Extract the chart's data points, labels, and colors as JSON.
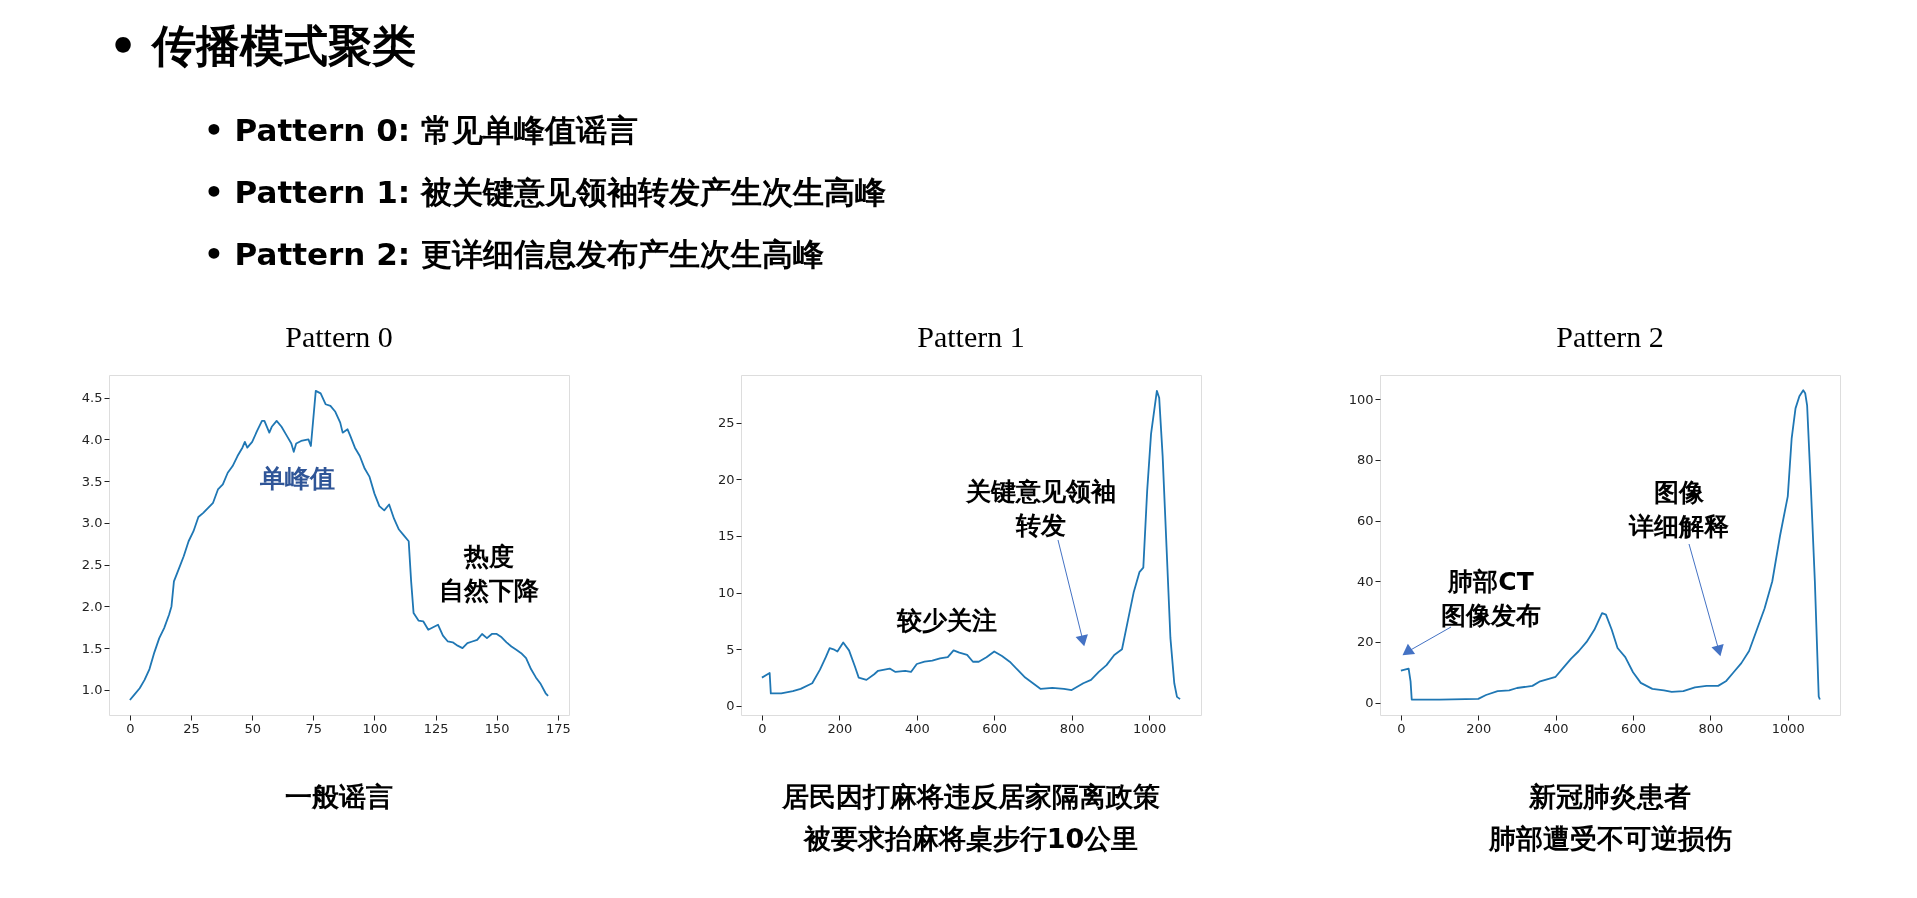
{
  "chart_data": [
    {
      "type": "other",
      "title": "• 传播模式聚类",
      "annotations": [
        "• Pattern 0: 常见单峰值谣言",
        "• Pattern 1: 被关键意见领袖转发产生次生高峰",
        "• Pattern 2: 更详细信息发布产生次生高峰"
      ]
    },
    {
      "type": "line",
      "title": "Pattern 0",
      "xlim": [
        -8.55,
        179.55
      ],
      "ylim": [
        0.7,
        4.77
      ],
      "xticks": [
        0,
        25,
        50,
        75,
        100,
        125,
        150,
        175
      ],
      "yticks": [
        {
          "value": 1,
          "label": "1.0"
        },
        1.5,
        {
          "value": 2,
          "label": "2.0"
        },
        2.5,
        {
          "value": 3,
          "label": "3.0"
        },
        3.5,
        {
          "value": 4,
          "label": "4.0"
        },
        4.5
      ],
      "series": [
        {
          "color": "#1f77b4",
          "x": [
            0,
            2,
            4,
            6,
            8,
            10,
            12,
            14,
            16,
            17,
            18,
            20,
            22,
            24,
            26,
            28,
            30,
            32,
            34,
            36,
            38,
            40,
            42,
            44,
            46,
            47,
            48,
            50,
            52,
            54,
            55,
            57,
            58,
            60,
            62,
            64,
            66,
            67,
            68,
            70,
            73,
            74,
            76,
            78,
            80,
            82,
            84,
            86,
            87,
            89,
            90,
            92,
            94,
            96,
            98,
            100,
            102,
            104,
            106,
            108,
            110,
            112,
            114,
            115,
            116,
            118,
            120,
            122,
            124,
            126,
            128,
            130,
            132,
            134,
            136,
            138,
            140,
            142,
            144,
            146,
            148,
            150,
            152,
            154,
            156,
            158,
            160,
            162,
            164,
            166,
            168,
            170,
            171
          ],
          "values": [
            0.88,
            0.95,
            1.02,
            1.12,
            1.25,
            1.45,
            1.62,
            1.74,
            1.9,
            2.0,
            2.3,
            2.45,
            2.6,
            2.78,
            2.9,
            3.07,
            3.12,
            3.18,
            3.24,
            3.4,
            3.46,
            3.6,
            3.68,
            3.8,
            3.9,
            3.97,
            3.9,
            3.97,
            4.1,
            4.22,
            4.22,
            4.08,
            4.15,
            4.22,
            4.15,
            4.05,
            3.95,
            3.85,
            3.95,
            3.98,
            4.0,
            3.92,
            4.58,
            4.55,
            4.42,
            4.4,
            4.33,
            4.2,
            4.08,
            4.12,
            4.05,
            3.9,
            3.8,
            3.65,
            3.55,
            3.35,
            3.2,
            3.15,
            3.22,
            3.05,
            2.92,
            2.85,
            2.78,
            2.3,
            1.92,
            1.83,
            1.82,
            1.72,
            1.75,
            1.78,
            1.65,
            1.58,
            1.57,
            1.53,
            1.5,
            1.56,
            1.58,
            1.6,
            1.67,
            1.62,
            1.67,
            1.67,
            1.63,
            1.57,
            1.52,
            1.48,
            1.44,
            1.38,
            1.25,
            1.15,
            1.07,
            0.96,
            0.93
          ]
        }
      ],
      "annotations": [
        "单峰值",
        "热度自然下降",
        "一般谣言"
      ]
    },
    {
      "type": "line",
      "title": "Pattern 1",
      "xlim": [
        -54,
        1134
      ],
      "ylim": [
        -0.8,
        29.2
      ],
      "xticks": [
        0,
        200,
        400,
        600,
        800,
        1000
      ],
      "yticks": [
        0,
        5,
        10,
        15,
        20,
        25
      ],
      "series": [
        {
          "color": "#1f77b4",
          "x": [
            0,
            20,
            23,
            50,
            80,
            100,
            130,
            150,
            165,
            175,
            185,
            195,
            210,
            225,
            240,
            250,
            270,
            290,
            300,
            330,
            345,
            370,
            385,
            400,
            420,
            440,
            460,
            480,
            495,
            510,
            530,
            545,
            560,
            580,
            600,
            620,
            640,
            660,
            680,
            700,
            720,
            750,
            780,
            800,
            830,
            850,
            870,
            890,
            910,
            930,
            945,
            960,
            975,
            985,
            995,
            1005,
            1020,
            1026,
            1035,
            1045,
            1055,
            1065,
            1072,
            1080
          ],
          "values": [
            2.5,
            2.9,
            1.1,
            1.1,
            1.3,
            1.5,
            2.0,
            3.2,
            4.3,
            5.1,
            5.0,
            4.8,
            5.6,
            4.9,
            3.5,
            2.5,
            2.3,
            2.8,
            3.1,
            3.3,
            3.0,
            3.1,
            3.0,
            3.7,
            3.9,
            4.0,
            4.2,
            4.3,
            4.9,
            4.7,
            4.5,
            3.9,
            3.9,
            4.3,
            4.8,
            4.4,
            3.9,
            3.2,
            2.5,
            2.0,
            1.5,
            1.6,
            1.5,
            1.4,
            2.0,
            2.3,
            3.0,
            3.6,
            4.5,
            5.0,
            7.5,
            10,
            11.8,
            12.2,
            19,
            24,
            27.8,
            27.2,
            22,
            14,
            6,
            2,
            0.8,
            0.6
          ]
        }
      ],
      "annotations": [
        "较少关注",
        "关键意见领袖转发",
        "居民因打麻将违反居家隔离政策被要求抬麻将桌步行10公里"
      ]
    },
    {
      "type": "line",
      "title": "Pattern 2",
      "xlim": [
        -54,
        1135
      ],
      "ylim": [
        -4.1,
        108
      ],
      "xticks": [
        0,
        200,
        400,
        600,
        800,
        1000
      ],
      "yticks": [
        0,
        20,
        40,
        60,
        80,
        100
      ],
      "series": [
        {
          "color": "#1f77b4",
          "x": [
            0,
            20,
            25,
            28,
            100,
            200,
            220,
            250,
            280,
            300,
            340,
            360,
            400,
            420,
            440,
            460,
            480,
            500,
            520,
            530,
            545,
            560,
            580,
            600,
            620,
            650,
            680,
            700,
            730,
            760,
            790,
            820,
            840,
            860,
            880,
            900,
            920,
            940,
            960,
            980,
            1000,
            1010,
            1020,
            1030,
            1040,
            1045,
            1050,
            1060,
            1070,
            1080,
            1083
          ],
          "values": [
            10.5,
            11.2,
            7,
            1,
            1.0,
            1.2,
            2.5,
            3.8,
            4,
            4.8,
            5.5,
            7,
            8.5,
            11.5,
            14.5,
            17,
            20,
            24,
            29.5,
            29,
            24,
            18,
            15,
            10,
            6.5,
            4.5,
            4,
            3.5,
            3.8,
            5,
            5.5,
            5.5,
            7,
            10,
            13,
            17,
            24,
            31,
            40,
            55,
            68,
            87,
            97,
            101,
            103,
            102,
            98,
            70,
            40,
            2,
            1
          ]
        }
      ],
      "annotations": [
        "肺部CT图像发布",
        "图像详细解释",
        "新冠肺炎患者肺部遭受不可逆损伤"
      ]
    }
  ]
}
